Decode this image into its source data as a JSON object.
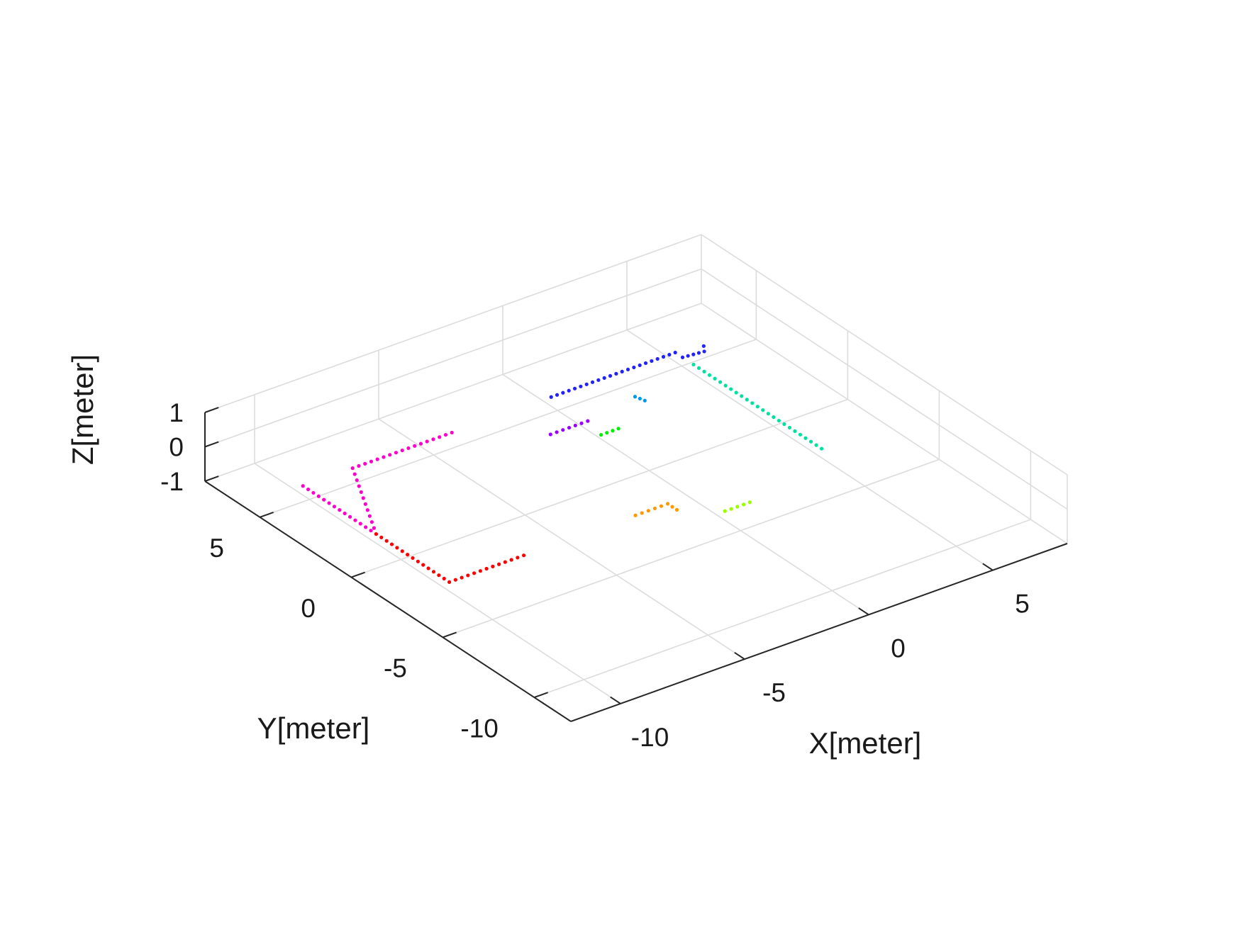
{
  "chart_data": {
    "type": "scatter",
    "projection": "3d",
    "title": "",
    "xlabel": "X[meter]",
    "ylabel": "Y[meter]",
    "zlabel": "Z[meter]",
    "xlim": [
      -12,
      8
    ],
    "ylim": [
      -12,
      8
    ],
    "zlim": [
      -1,
      1
    ],
    "xticks": [
      "-10",
      "-5",
      "0",
      "5"
    ],
    "yticks": [
      "-10",
      "-5",
      "0",
      "5"
    ],
    "zticks": [
      "-1",
      "0",
      "1"
    ],
    "grid": true,
    "series": [
      {
        "color": "#ff00cc",
        "points": [
          [
            -11,
            4,
            0
          ],
          [
            -11,
            0,
            0
          ],
          [
            -9,
            4,
            0
          ],
          [
            -8,
            4,
            0
          ],
          [
            -5,
            4,
            0
          ]
        ]
      },
      {
        "color": "#ff0000",
        "points": [
          [
            -11,
            0,
            0
          ],
          [
            -11,
            -4,
            0
          ],
          [
            -8,
            -4,
            0
          ]
        ]
      },
      {
        "color": "#2222ff",
        "points": [
          [
            -1,
            4,
            0
          ],
          [
            4,
            4,
            0
          ],
          [
            4,
            3.6,
            0
          ],
          [
            4.8,
            3.5,
            0
          ],
          [
            5,
            3.8,
            0
          ]
        ]
      },
      {
        "color": "#00e0a0",
        "points": [
          [
            4,
            3,
            0
          ],
          [
            4,
            -4,
            0
          ]
        ]
      },
      {
        "color": "#9900ff",
        "points": [
          [
            -2.5,
            2,
            0
          ],
          [
            -1,
            2,
            0
          ]
        ]
      },
      {
        "color": "#0099ee",
        "points": [
          [
            1.2,
            2.4,
            0
          ],
          [
            1.3,
            2,
            0
          ]
        ]
      },
      {
        "color": "#00ee00",
        "points": [
          [
            -1.2,
            1,
            0
          ],
          [
            -0.5,
            1,
            0
          ]
        ]
      },
      {
        "color": "#ff9900",
        "points": [
          [
            -3.5,
            -4,
            0
          ],
          [
            -2.2,
            -4,
            0
          ],
          [
            -2.2,
            -4.5,
            0
          ]
        ]
      },
      {
        "color": "#99ff00",
        "points": [
          [
            -1,
            -5.5,
            0
          ],
          [
            0,
            -5.5,
            0
          ]
        ]
      }
    ]
  }
}
